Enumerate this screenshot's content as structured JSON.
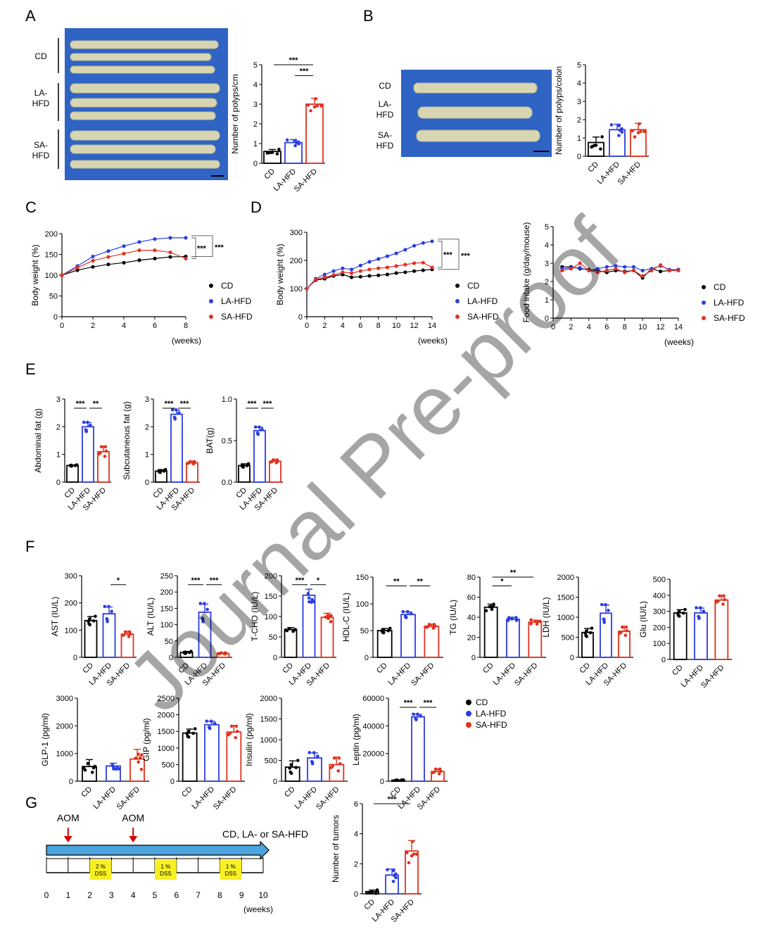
{
  "colors": {
    "CD": "#000000",
    "LA-HFD": "#2b3de0",
    "SA-HFD": "#e0321e",
    "photo_bg": "#2f63c4",
    "dss_box": "#f6ef22",
    "timeline_arrow": "#4aa3dc",
    "aom_arrow": "#d40000"
  },
  "panels": {
    "A": "A",
    "B": "B",
    "C": "C",
    "D": "D",
    "E": "E",
    "F": "F",
    "G": "G"
  },
  "watermark": "Journal Pre-proof",
  "photoA": {
    "labels": [
      "CD",
      "LA-\nHFD",
      "SA-\nHFD"
    ]
  },
  "photoB": {
    "labels": [
      "CD",
      "LA-\nHFD",
      "SA-\nHFD"
    ]
  },
  "legend": {
    "labels": [
      "CD",
      "LA-HFD",
      "SA-HFD"
    ]
  },
  "timeline": {
    "aom_label": "AOM",
    "aom_weeks": [
      1,
      4
    ],
    "diet_label": "CD, LA- or SA-HFD",
    "dss": [
      {
        "line1": "2 %",
        "line2": "DSS",
        "start": 2,
        "end": 3
      },
      {
        "line1": "1 %",
        "line2": "DSS",
        "start": 5,
        "end": 6
      },
      {
        "line1": "1 %",
        "line2": "DSS",
        "start": 8,
        "end": 9
      }
    ],
    "ticks": [
      "0",
      "1",
      "2",
      "3",
      "4",
      "5",
      "6",
      "7",
      "8",
      "9",
      "10"
    ],
    "unit": "(weeks)"
  },
  "chart_data": [
    {
      "id": "A_polyps",
      "type": "bar",
      "categories": [
        "CD",
        "LA-HFD",
        "SA-HFD"
      ],
      "values": [
        0.6,
        1.05,
        3.0
      ],
      "sem": [
        0.1,
        0.15,
        0.3
      ],
      "ylabel": "Number of polyps/cm",
      "ylim": [
        0,
        5
      ],
      "yticks": [
        "0",
        "1",
        "2",
        "3",
        "4",
        "5"
      ],
      "sig": [
        {
          "from": 1,
          "to": 2,
          "label": "***"
        },
        {
          "from": 0,
          "to": 2,
          "label": "***"
        }
      ]
    },
    {
      "id": "B_polyps",
      "type": "bar",
      "categories": [
        "CD",
        "LA-HFD",
        "SA-HFD"
      ],
      "values": [
        0.75,
        1.45,
        1.45
      ],
      "sem": [
        0.3,
        0.3,
        0.35
      ],
      "ylabel": "Number of polyps/colon",
      "ylim": [
        0,
        5
      ],
      "yticks": [
        "0",
        "1",
        "2",
        "3",
        "4",
        "5"
      ],
      "sig": []
    },
    {
      "id": "C_bw",
      "type": "line",
      "ylabel": "Body weight (%)",
      "xlabel": "(weeks)",
      "xlim": [
        0,
        8
      ],
      "ylim": [
        0,
        200
      ],
      "xticks": [
        "0",
        "2",
        "4",
        "6",
        "8"
      ],
      "yticks": [
        "0",
        "50",
        "100",
        "150",
        "200"
      ],
      "x": [
        0,
        1,
        2,
        3,
        4,
        5,
        6,
        7,
        8
      ],
      "series": [
        {
          "name": "CD",
          "values": [
            100,
            112,
            120,
            126,
            130,
            136,
            140,
            144,
            145
          ]
        },
        {
          "name": "LA-HFD",
          "values": [
            100,
            122,
            145,
            158,
            170,
            180,
            187,
            190,
            190
          ]
        },
        {
          "name": "SA-HFD",
          "values": [
            100,
            118,
            135,
            144,
            152,
            160,
            160,
            155,
            140
          ]
        }
      ],
      "sig": [
        "***",
        "***"
      ]
    },
    {
      "id": "D_bw",
      "type": "line",
      "ylabel": "Body weight (%)",
      "xlabel": "(weeks)",
      "xlim": [
        0,
        14
      ],
      "ylim": [
        0,
        300
      ],
      "xticks": [
        "0",
        "2",
        "4",
        "6",
        "8",
        "10",
        "12",
        "14"
      ],
      "yticks": [
        "0",
        "100",
        "200",
        "300"
      ],
      "x": [
        0,
        1,
        2,
        3,
        4,
        5,
        6,
        7,
        8,
        9,
        10,
        11,
        12,
        13,
        14
      ],
      "series": [
        {
          "name": "CD",
          "values": [
            100,
            130,
            135,
            145,
            150,
            140,
            142,
            145,
            147,
            150,
            155,
            158,
            162,
            165,
            168
          ]
        },
        {
          "name": "LA-HFD",
          "values": [
            100,
            135,
            150,
            162,
            172,
            168,
            182,
            195,
            205,
            215,
            225,
            238,
            252,
            262,
            268
          ]
        },
        {
          "name": "SA-HFD",
          "values": [
            100,
            132,
            140,
            148,
            158,
            155,
            162,
            168,
            172,
            175,
            180,
            185,
            190,
            192,
            175
          ]
        }
      ],
      "sig": [
        "***",
        "***"
      ]
    },
    {
      "id": "D_food",
      "type": "line",
      "ylabel": "Food intake (g/day/mouse)",
      "xlabel": "(weeks)",
      "xlim": [
        0,
        14
      ],
      "ylim": [
        0,
        5
      ],
      "xticks": [
        "0",
        "2",
        "4",
        "6",
        "8",
        "10",
        "12",
        "14"
      ],
      "yticks": [
        "0",
        "1",
        "2",
        "3",
        "4",
        "5"
      ],
      "x": [
        1,
        2,
        3,
        4,
        5,
        6,
        7,
        8,
        9,
        10,
        11,
        12,
        13,
        14
      ],
      "series": [
        {
          "name": "CD",
          "values": [
            2.8,
            2.8,
            2.7,
            2.65,
            2.6,
            2.5,
            2.6,
            2.55,
            2.6,
            2.2,
            2.7,
            2.55,
            2.6,
            2.65
          ]
        },
        {
          "name": "LA-HFD",
          "values": [
            2.7,
            2.75,
            2.75,
            2.6,
            2.7,
            2.8,
            2.85,
            2.8,
            2.8,
            2.6,
            2.7,
            2.85,
            2.65,
            2.65
          ]
        },
        {
          "name": "SA-HFD",
          "values": [
            2.6,
            2.7,
            3.0,
            2.6,
            2.5,
            2.6,
            2.7,
            2.5,
            2.6,
            2.3,
            2.6,
            2.9,
            2.6,
            2.6
          ]
        }
      ]
    },
    {
      "id": "E_abd",
      "type": "bar",
      "categories": [
        "CD",
        "LA-HFD",
        "SA-HFD"
      ],
      "values": [
        0.6,
        2.0,
        1.1
      ],
      "sem": [
        0.02,
        0.15,
        0.2
      ],
      "ylabel": "Abdominal fat (g)",
      "ylim": [
        0,
        3
      ],
      "yticks": [
        "0",
        "1",
        "2",
        "3"
      ],
      "sig": [
        {
          "from": 0,
          "to": 1,
          "label": "***"
        },
        {
          "from": 1,
          "to": 2,
          "label": "**"
        }
      ]
    },
    {
      "id": "E_sub",
      "type": "bar",
      "categories": [
        "CD",
        "LA-HFD",
        "SA-HFD"
      ],
      "values": [
        0.4,
        2.45,
        0.7
      ],
      "sem": [
        0.05,
        0.15,
        0.05
      ],
      "ylabel": "Subcutaneous fat (g)",
      "ylim": [
        0,
        3
      ],
      "yticks": [
        "0",
        "1",
        "2",
        "3"
      ],
      "sig": [
        {
          "from": 0,
          "to": 1,
          "label": "***"
        },
        {
          "from": 1,
          "to": 2,
          "label": "***"
        }
      ]
    },
    {
      "id": "E_bat",
      "type": "bar",
      "categories": [
        "CD",
        "LA-HFD",
        "SA-HFD"
      ],
      "values": [
        0.2,
        0.62,
        0.25
      ],
      "sem": [
        0.02,
        0.04,
        0.02
      ],
      "ylabel": "BAT(g)",
      "ylim": [
        0,
        1.0
      ],
      "yticks": [
        "0.0",
        "0.5",
        "1.0"
      ],
      "sig": [
        {
          "from": 0,
          "to": 1,
          "label": "***"
        },
        {
          "from": 1,
          "to": 2,
          "label": "***"
        }
      ]
    },
    {
      "id": "F_ast",
      "type": "bar",
      "categories": [
        "CD",
        "LA-HFD",
        "SA-HFD"
      ],
      "values": [
        135,
        160,
        85
      ],
      "sem": [
        15,
        25,
        10
      ],
      "ylabel": "AST (IU/L)",
      "ylim": [
        0,
        300
      ],
      "yticks": [
        "0",
        "100",
        "200",
        "300"
      ],
      "sig": [
        {
          "from": 1,
          "to": 2,
          "label": "*"
        }
      ]
    },
    {
      "id": "F_alt",
      "type": "bar",
      "categories": [
        "CD",
        "LA-HFD",
        "SA-HFD"
      ],
      "values": [
        15,
        138,
        12
      ],
      "sem": [
        3,
        25,
        2
      ],
      "ylabel": "ALT (IU/L)",
      "ylim": [
        0,
        250
      ],
      "yticks": [
        "0",
        "50",
        "100",
        "150",
        "200",
        "250"
      ],
      "sig": [
        {
          "from": 0,
          "to": 1,
          "label": "***"
        },
        {
          "from": 1,
          "to": 2,
          "label": "***"
        }
      ]
    },
    {
      "id": "F_tcho",
      "type": "bar",
      "categories": [
        "CD",
        "LA-HFD",
        "SA-HFD"
      ],
      "values": [
        68,
        152,
        98
      ],
      "sem": [
        5,
        15,
        10
      ],
      "ylabel": "T-CHO (IU/L)",
      "ylim": [
        0,
        200
      ],
      "yticks": [
        "0",
        "50",
        "100",
        "150",
        "200"
      ],
      "sig": [
        {
          "from": 0,
          "to": 1,
          "label": "***"
        },
        {
          "from": 1,
          "to": 2,
          "label": "*"
        }
      ]
    },
    {
      "id": "F_hdl",
      "type": "bar",
      "categories": [
        "CD",
        "LA-HFD",
        "SA-HFD"
      ],
      "values": [
        50,
        80,
        58
      ],
      "sem": [
        4,
        5,
        4
      ],
      "ylabel": "HDL-C (IU/L)",
      "ylim": [
        0,
        150
      ],
      "yticks": [
        "0",
        "50",
        "100",
        "150"
      ],
      "sig": [
        {
          "from": 0,
          "to": 1,
          "label": "**"
        },
        {
          "from": 1,
          "to": 2,
          "label": "**"
        }
      ]
    },
    {
      "id": "F_tg",
      "type": "bar",
      "categories": [
        "CD",
        "LA-HFD",
        "SA-HFD"
      ],
      "values": [
        50,
        38,
        35
      ],
      "sem": [
        3,
        2,
        2
      ],
      "ylabel": "TG (IU/L)",
      "ylim": [
        0,
        80
      ],
      "yticks": [
        "0",
        "20",
        "40",
        "60",
        "80"
      ],
      "sig": [
        {
          "from": 0,
          "to": 1,
          "label": "*"
        },
        {
          "from": 0,
          "to": 2,
          "label": "**"
        }
      ]
    },
    {
      "id": "F_ldh",
      "type": "bar",
      "categories": [
        "CD",
        "LA-HFD",
        "SA-HFD"
      ],
      "values": [
        620,
        1100,
        650
      ],
      "sem": [
        100,
        200,
        120
      ],
      "ylabel": "LDH (IU/L)",
      "ylim": [
        0,
        2000
      ],
      "yticks": [
        "0",
        "500",
        "1000",
        "1500",
        "2000"
      ],
      "sig": []
    },
    {
      "id": "F_glu",
      "type": "bar",
      "categories": [
        "CD",
        "LA-HFD",
        "SA-HFD"
      ],
      "values": [
        290,
        290,
        370
      ],
      "sem": [
        20,
        30,
        30
      ],
      "ylabel": "Glu (IU/L)",
      "ylim": [
        0,
        500
      ],
      "yticks": [
        "0",
        "100",
        "200",
        "300",
        "400",
        "500"
      ],
      "sig": []
    },
    {
      "id": "F_glp1",
      "type": "bar",
      "categories": [
        "CD",
        "LA-HFD",
        "SA-HFD"
      ],
      "values": [
        530,
        550,
        800
      ],
      "sem": [
        250,
        100,
        350
      ],
      "ylabel": "GLP-1 (pg/ml)",
      "ylim": [
        0,
        3000
      ],
      "yticks": [
        "0",
        "1000",
        "2000",
        "3000"
      ],
      "sig": []
    },
    {
      "id": "F_gip",
      "type": "bar",
      "categories": [
        "CD",
        "LA-HFD",
        "SA-HFD"
      ],
      "values": [
        1450,
        1700,
        1480
      ],
      "sem": [
        120,
        100,
        200
      ],
      "ylabel": "GIP (pg/ml)",
      "ylim": [
        0,
        2500
      ],
      "yticks": [
        "0",
        "500",
        "1000",
        "1500",
        "2000",
        "2500"
      ],
      "sig": []
    },
    {
      "id": "F_ins",
      "type": "bar",
      "categories": [
        "CD",
        "LA-HFD",
        "SA-HFD"
      ],
      "values": [
        340,
        560,
        400
      ],
      "sem": [
        150,
        120,
        180
      ],
      "ylabel": "Insulin (pg/ml)",
      "ylim": [
        0,
        2000
      ],
      "yticks": [
        "0",
        "500",
        "1000",
        "1500",
        "2000"
      ],
      "sig": []
    },
    {
      "id": "F_lep",
      "type": "bar",
      "categories": [
        "CD",
        "LA-HFD",
        "SA-HFD"
      ],
      "values": [
        800,
        46500,
        7000
      ],
      "sem": [
        200,
        1800,
        2000
      ],
      "ylabel": "Leptin (pg/ml)",
      "ylim": [
        0,
        60000
      ],
      "yticks": [
        "0",
        "20000",
        "40000",
        "60000"
      ],
      "sig": [
        {
          "from": 0,
          "to": 1,
          "label": "***"
        },
        {
          "from": 1,
          "to": 2,
          "label": "***"
        }
      ]
    },
    {
      "id": "G_tumors",
      "type": "bar",
      "categories": [
        "CD",
        "LA-HFD",
        "SA-HFD"
      ],
      "values": [
        0.15,
        1.25,
        2.85
      ],
      "sem": [
        0.1,
        0.4,
        0.7
      ],
      "ylabel": "Number of tumors",
      "ylim": [
        0,
        6
      ],
      "yticks": [
        "0",
        "2",
        "4",
        "6"
      ],
      "sig": [
        {
          "from": 0,
          "to": 2,
          "label": "***"
        }
      ]
    }
  ]
}
